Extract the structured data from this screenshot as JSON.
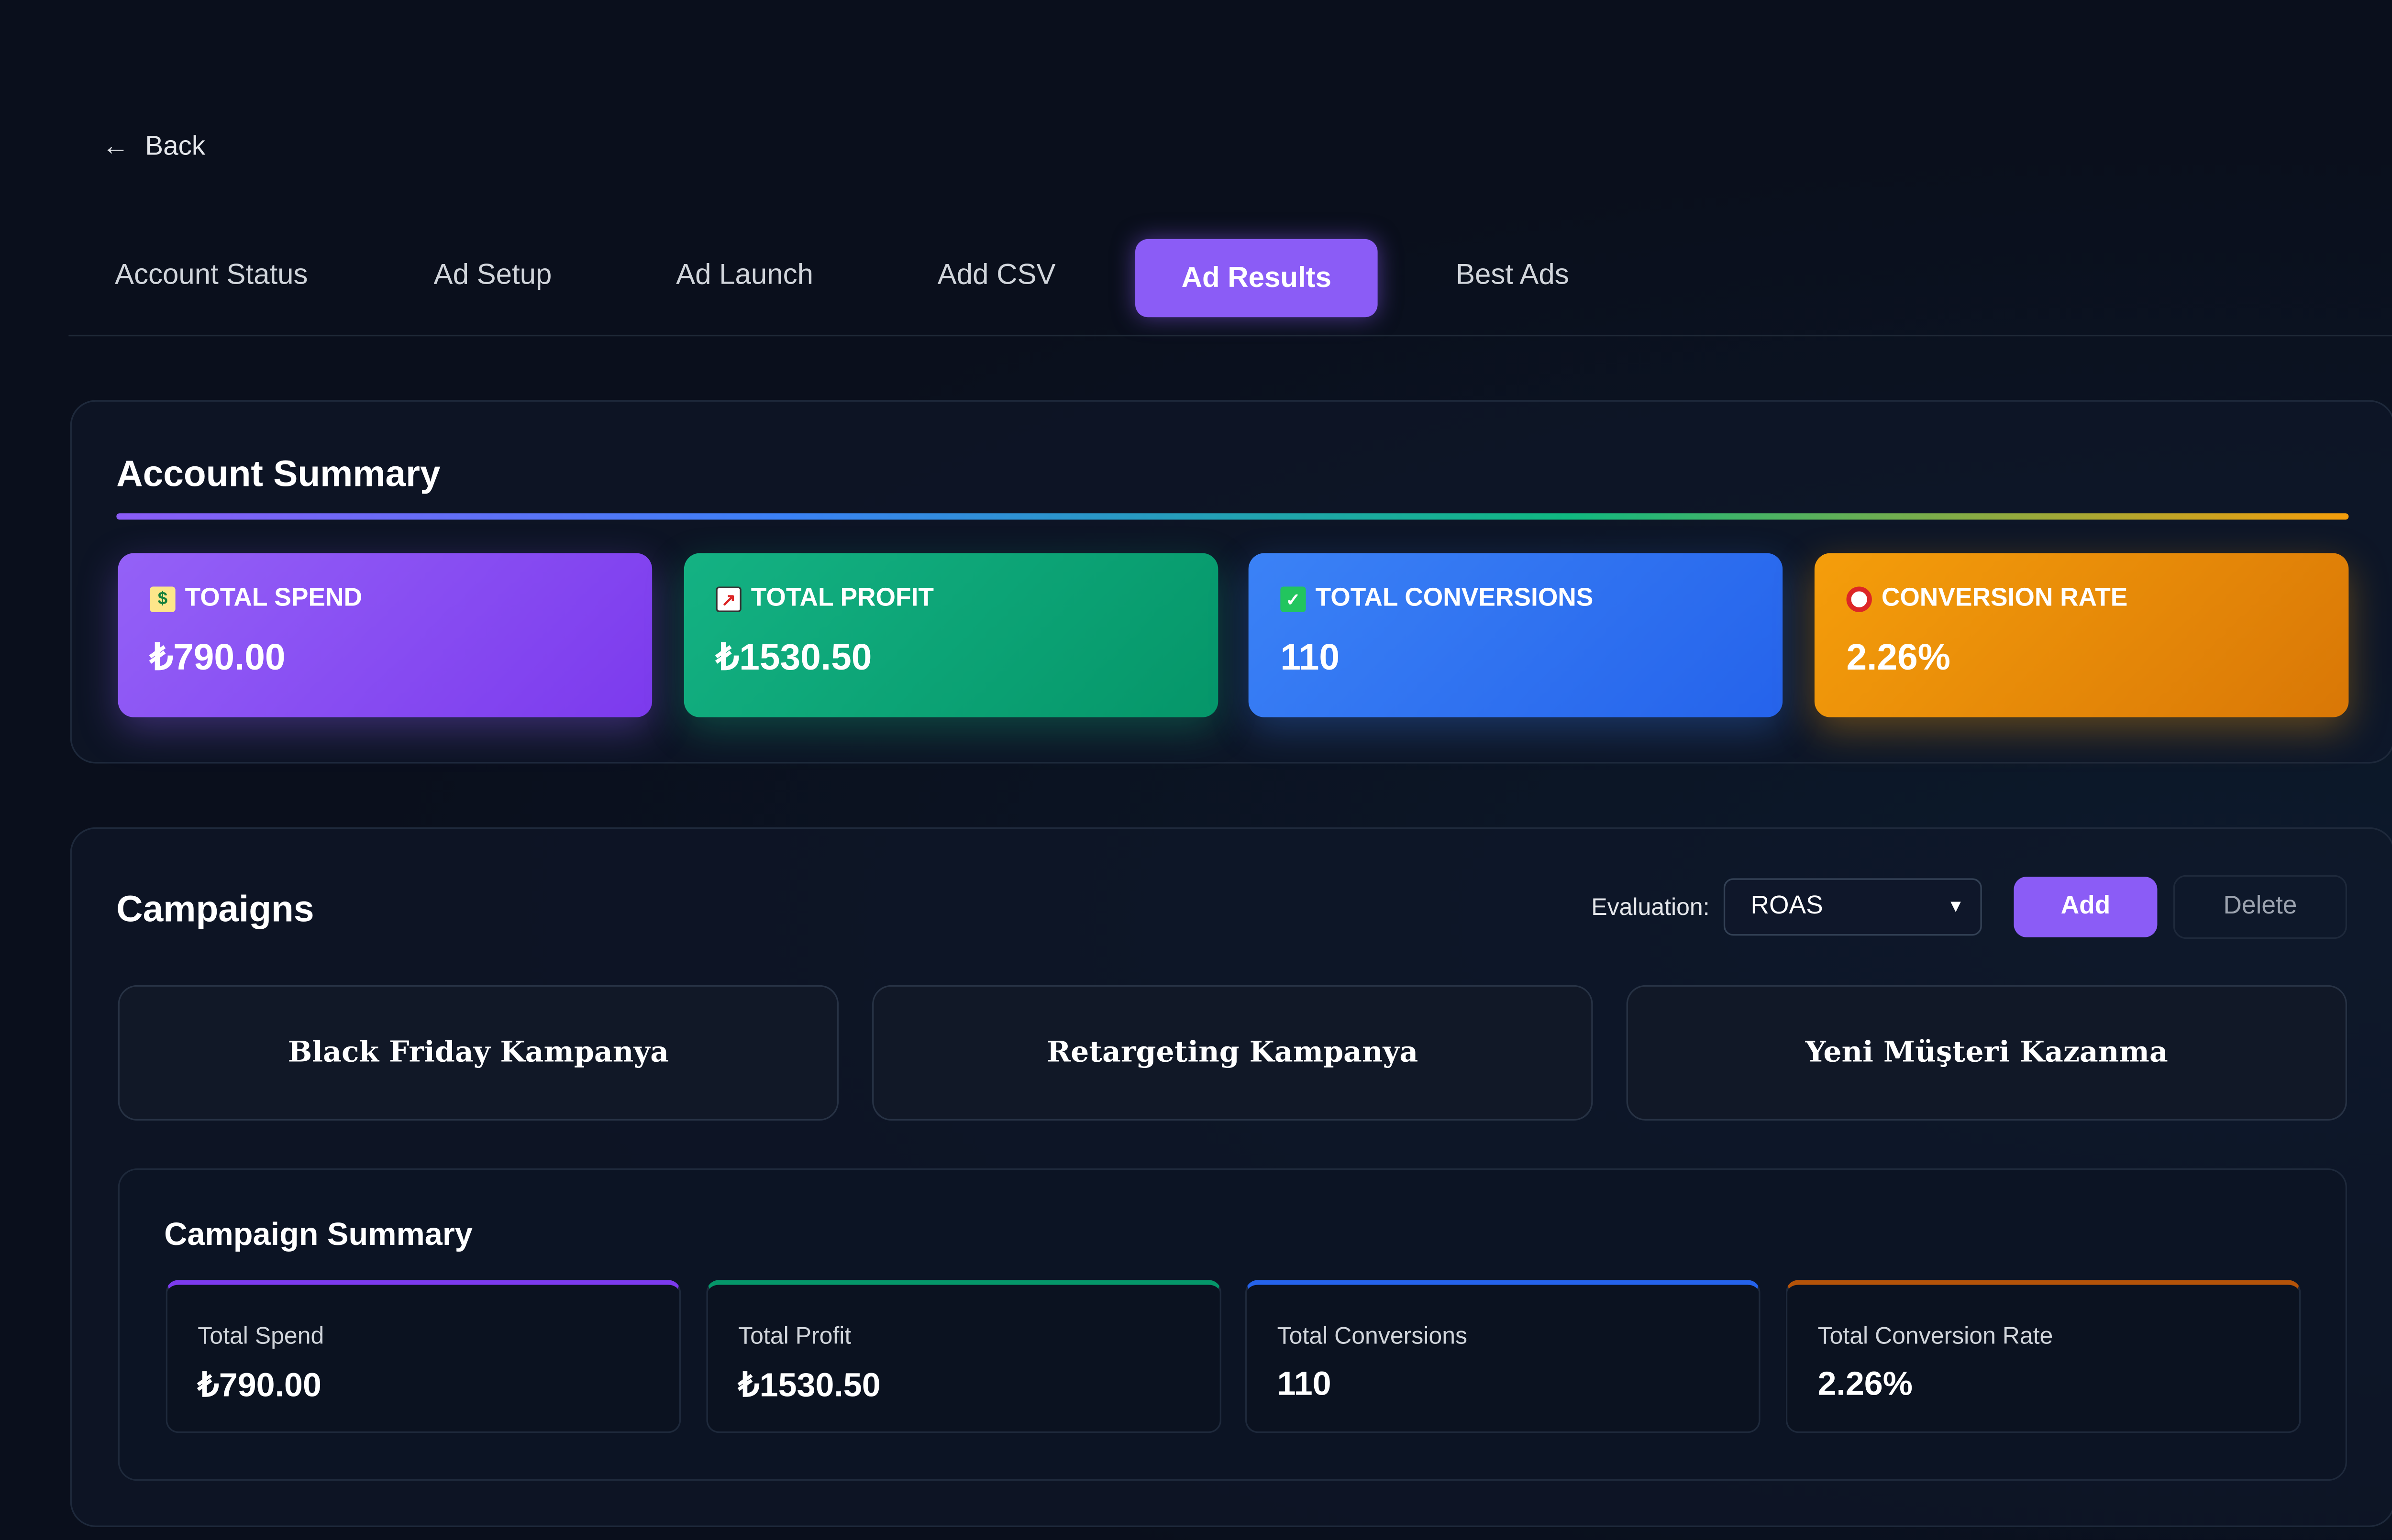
{
  "nav": {
    "back_label": "Back",
    "tabs": [
      "Account Status",
      "Ad Setup",
      "Ad Launch",
      "Add CSV",
      "Ad Results",
      "Best Ads"
    ],
    "active_tab": "Ad Results"
  },
  "account_summary": {
    "title": "Account Summary",
    "cards": [
      {
        "label": "TOTAL SPEND",
        "value": "₺790.00",
        "icon": "money-with-wings-icon",
        "color": "#8b5cf6"
      },
      {
        "label": "TOTAL PROFIT",
        "value": "₺1530.50",
        "icon": "chart-increasing-icon",
        "color": "#10b981"
      },
      {
        "label": "TOTAL CONVERSIONS",
        "value": "110",
        "icon": "check-mark-icon",
        "color": "#3b82f6"
      },
      {
        "label": "CONVERSION RATE",
        "value": "2.26%",
        "icon": "target-icon",
        "color": "#f59e0b"
      }
    ]
  },
  "campaigns": {
    "title": "Campaigns",
    "evaluation_label": "Evaluation:",
    "evaluation_value": "ROAS",
    "add_label": "Add",
    "delete_label": "Delete",
    "items": [
      "Black Friday Kampanya",
      "Retargeting Kampanya",
      "Yeni Müşteri Kazanma"
    ]
  },
  "campaign_summary": {
    "title": "Campaign Summary",
    "cards": [
      {
        "label": "Total Spend",
        "value": "₺790.00"
      },
      {
        "label": "Total Profit",
        "value": "₺1530.50"
      },
      {
        "label": "Total Conversions",
        "value": "110"
      },
      {
        "label": "Total Conversion Rate",
        "value": "2.26%"
      }
    ]
  }
}
